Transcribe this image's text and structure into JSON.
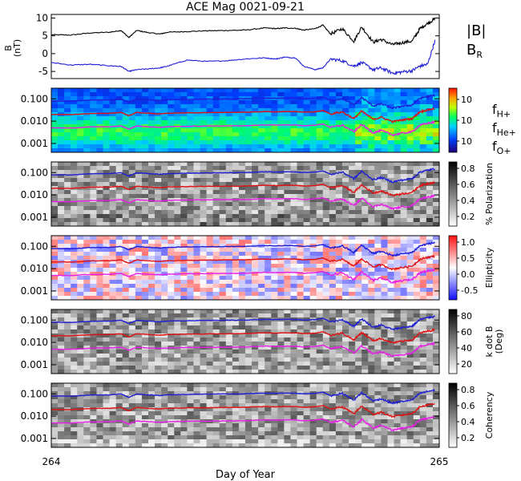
{
  "title": "ACE Mag 0021-09-21",
  "xlabel": "Day of Year",
  "colors": {
    "black": "#000000",
    "blue": "#1f1fd6",
    "red": "#e01010",
    "magenta": "#e81ee8"
  },
  "chart_data": [
    {
      "id": "b-field",
      "type": "line",
      "ylabel": "B\n(nT)",
      "ylim": [
        -7,
        11
      ],
      "yticks": [
        -5,
        0,
        5,
        10
      ],
      "ytick_labels": [
        "-5",
        "0",
        "5",
        "10"
      ],
      "x": [
        264.0,
        264.05,
        264.1,
        264.15,
        264.18,
        264.2,
        264.22,
        264.25,
        264.28,
        264.3,
        264.35,
        264.4,
        264.45,
        264.5,
        264.55,
        264.58,
        264.6,
        264.63,
        264.65,
        264.68,
        264.7,
        264.72,
        264.75,
        264.78,
        264.8,
        264.83,
        264.85,
        264.88,
        264.9,
        264.93,
        264.95,
        264.97,
        264.99
      ],
      "series": [
        {
          "name": "|B|",
          "color": "#000000",
          "values": [
            5.3,
            5.2,
            5.8,
            6.0,
            6.5,
            4.5,
            6.5,
            5.9,
            5.5,
            6.0,
            6.2,
            6.4,
            6.5,
            6.6,
            7.2,
            7.0,
            7.2,
            7.1,
            6.6,
            7.0,
            8.0,
            5.5,
            7.0,
            3.5,
            7.5,
            3.2,
            4.0,
            2.5,
            3.0,
            3.5,
            7.0,
            8.5,
            9.8
          ]
        },
        {
          "name": "B_R",
          "color": "#1f1fd6",
          "values": [
            -2.5,
            -3.2,
            -3.0,
            -3.4,
            -3.6,
            -5.0,
            -4.5,
            -4.3,
            -4.0,
            -3.5,
            -1.8,
            -2.2,
            -2.0,
            -1.5,
            -1.2,
            -1.5,
            -1.0,
            -1.2,
            -3.5,
            -4.5,
            -4.0,
            -1.5,
            -2.0,
            -3.5,
            -2.5,
            -4.5,
            -4.0,
            -5.5,
            -5.2,
            -4.8,
            -3.5,
            -3.0,
            4.0
          ]
        }
      ],
      "legend": [
        "|B|",
        "B_R"
      ]
    },
    {
      "id": "power",
      "type": "heatmap",
      "colorbar_ticks": [
        "10",
        "10",
        "10"
      ],
      "legend": [
        "f_H+",
        "f_He+",
        "f_O+"
      ]
    },
    {
      "id": "polarization",
      "type": "heatmap",
      "colorbar_label": "% Polarization",
      "colorbar_ticks": [
        "0.2",
        "0.4",
        "0.6",
        "0.8"
      ]
    },
    {
      "id": "ellipticity",
      "type": "heatmap",
      "colorbar_label": "Ellipticity",
      "colorbar_ticks": [
        "-0.5",
        "0.0",
        "0.5",
        "1.0"
      ]
    },
    {
      "id": "kdotb",
      "type": "heatmap",
      "colorbar_label": "k dot B\n(Deg)",
      "colorbar_ticks": [
        "20",
        "40",
        "60",
        "80"
      ]
    },
    {
      "id": "coherency",
      "type": "heatmap",
      "colorbar_label": "Coherency",
      "colorbar_ticks": [
        "0.2",
        "0.4",
        "0.6",
        "0.8"
      ]
    }
  ],
  "freq_axis": {
    "yticks": [
      0.001,
      0.01,
      0.1
    ],
    "ytick_labels": [
      "0.001",
      "0.010",
      "0.100"
    ],
    "ylim": [
      0.0004,
      0.3
    ]
  },
  "gyro_lines": {
    "x": [
      264.0,
      264.05,
      264.1,
      264.15,
      264.18,
      264.2,
      264.22,
      264.25,
      264.28,
      264.3,
      264.35,
      264.4,
      264.45,
      264.5,
      264.55,
      264.58,
      264.6,
      264.63,
      264.65,
      264.68,
      264.7,
      264.72,
      264.75,
      264.78,
      264.8,
      264.83,
      264.85,
      264.88,
      264.9,
      264.93,
      264.95,
      264.97,
      264.99
    ],
    "series": [
      {
        "name": "f_H+",
        "color": "#1f1fd6",
        "values": [
          0.08,
          0.078,
          0.088,
          0.09,
          0.098,
          0.07,
          0.098,
          0.09,
          0.084,
          0.09,
          0.094,
          0.097,
          0.098,
          0.1,
          0.108,
          0.105,
          0.108,
          0.107,
          0.1,
          0.105,
          0.12,
          0.083,
          0.105,
          0.053,
          0.113,
          0.048,
          0.06,
          0.038,
          0.045,
          0.053,
          0.105,
          0.128,
          0.148
        ]
      },
      {
        "name": "f_He+",
        "color": "#e01010",
        "values": [
          0.02,
          0.0195,
          0.022,
          0.0225,
          0.0245,
          0.0175,
          0.0245,
          0.0225,
          0.021,
          0.0225,
          0.0235,
          0.024,
          0.0245,
          0.025,
          0.027,
          0.026,
          0.027,
          0.0268,
          0.025,
          0.026,
          0.03,
          0.021,
          0.026,
          0.013,
          0.028,
          0.012,
          0.015,
          0.0095,
          0.011,
          0.013,
          0.026,
          0.032,
          0.037
        ]
      },
      {
        "name": "f_O+",
        "color": "#e81ee8",
        "values": [
          0.005,
          0.0049,
          0.0055,
          0.0056,
          0.0061,
          0.0044,
          0.0061,
          0.0056,
          0.0053,
          0.0056,
          0.0059,
          0.006,
          0.0061,
          0.0062,
          0.0068,
          0.0066,
          0.0068,
          0.0067,
          0.0062,
          0.0066,
          0.0075,
          0.0052,
          0.0066,
          0.0033,
          0.0071,
          0.003,
          0.0038,
          0.0024,
          0.0028,
          0.0033,
          0.0066,
          0.008,
          0.0093
        ]
      }
    ]
  },
  "x_axis": {
    "xlim": [
      264,
      265
    ],
    "tick_labels": [
      "264",
      "265"
    ]
  }
}
